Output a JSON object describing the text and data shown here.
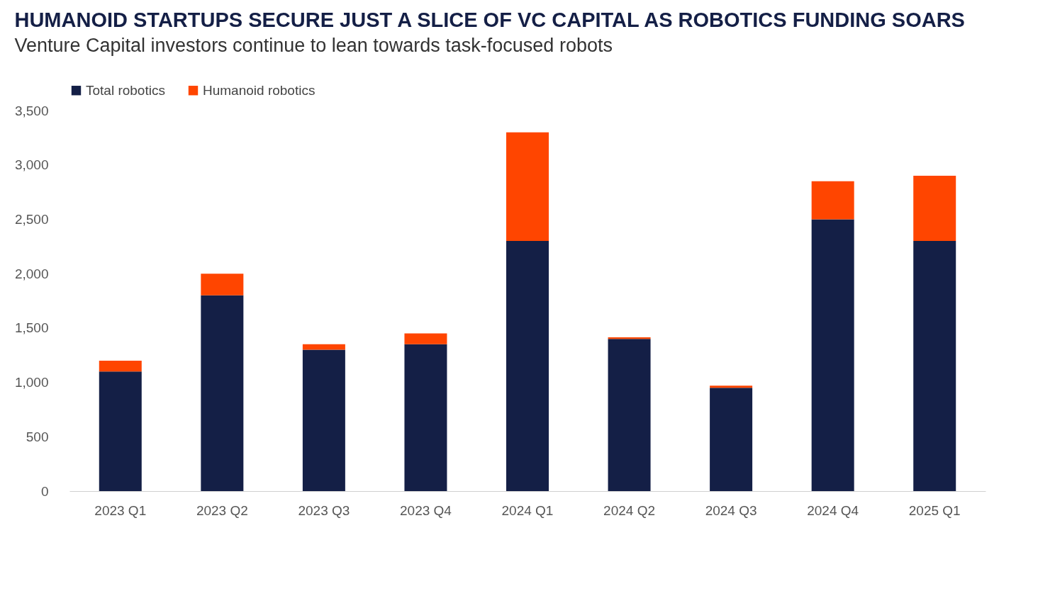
{
  "chart_data": {
    "type": "bar",
    "title": "HUMANOID STARTUPS SECURE JUST A SLICE OF VC CAPITAL AS ROBOTICS FUNDING SOARS",
    "subtitle": "Venture Capital investors continue to lean towards task-focused robots",
    "categories": [
      "2023 Q1",
      "2023 Q2",
      "2023 Q3",
      "2023 Q4",
      "2024 Q1",
      "2024 Q2",
      "2024 Q3",
      "2024 Q4",
      "2025 Q1"
    ],
    "series": [
      {
        "name": "Total robotics",
        "color": "#141f46",
        "values": [
          1100,
          1800,
          1300,
          1350,
          2300,
          1400,
          950,
          2500,
          2300
        ]
      },
      {
        "name": "Humanoid robotics",
        "color": "#ff4500",
        "values": [
          100,
          200,
          50,
          100,
          1000,
          15,
          20,
          350,
          600
        ]
      }
    ],
    "stacked": true,
    "ylim": [
      0,
      3500
    ],
    "yticks": [
      0,
      500,
      {
        "value": 1000,
        "label": "1,000"
      },
      {
        "value": 1500,
        "label": "1,500"
      },
      {
        "value": 2000,
        "label": "2,000"
      },
      {
        "value": 2500,
        "label": "2,500"
      },
      {
        "value": 3000,
        "label": "3,000"
      },
      {
        "value": 3500,
        "label": "3,500"
      }
    ],
    "grid": false,
    "legend": "top"
  }
}
